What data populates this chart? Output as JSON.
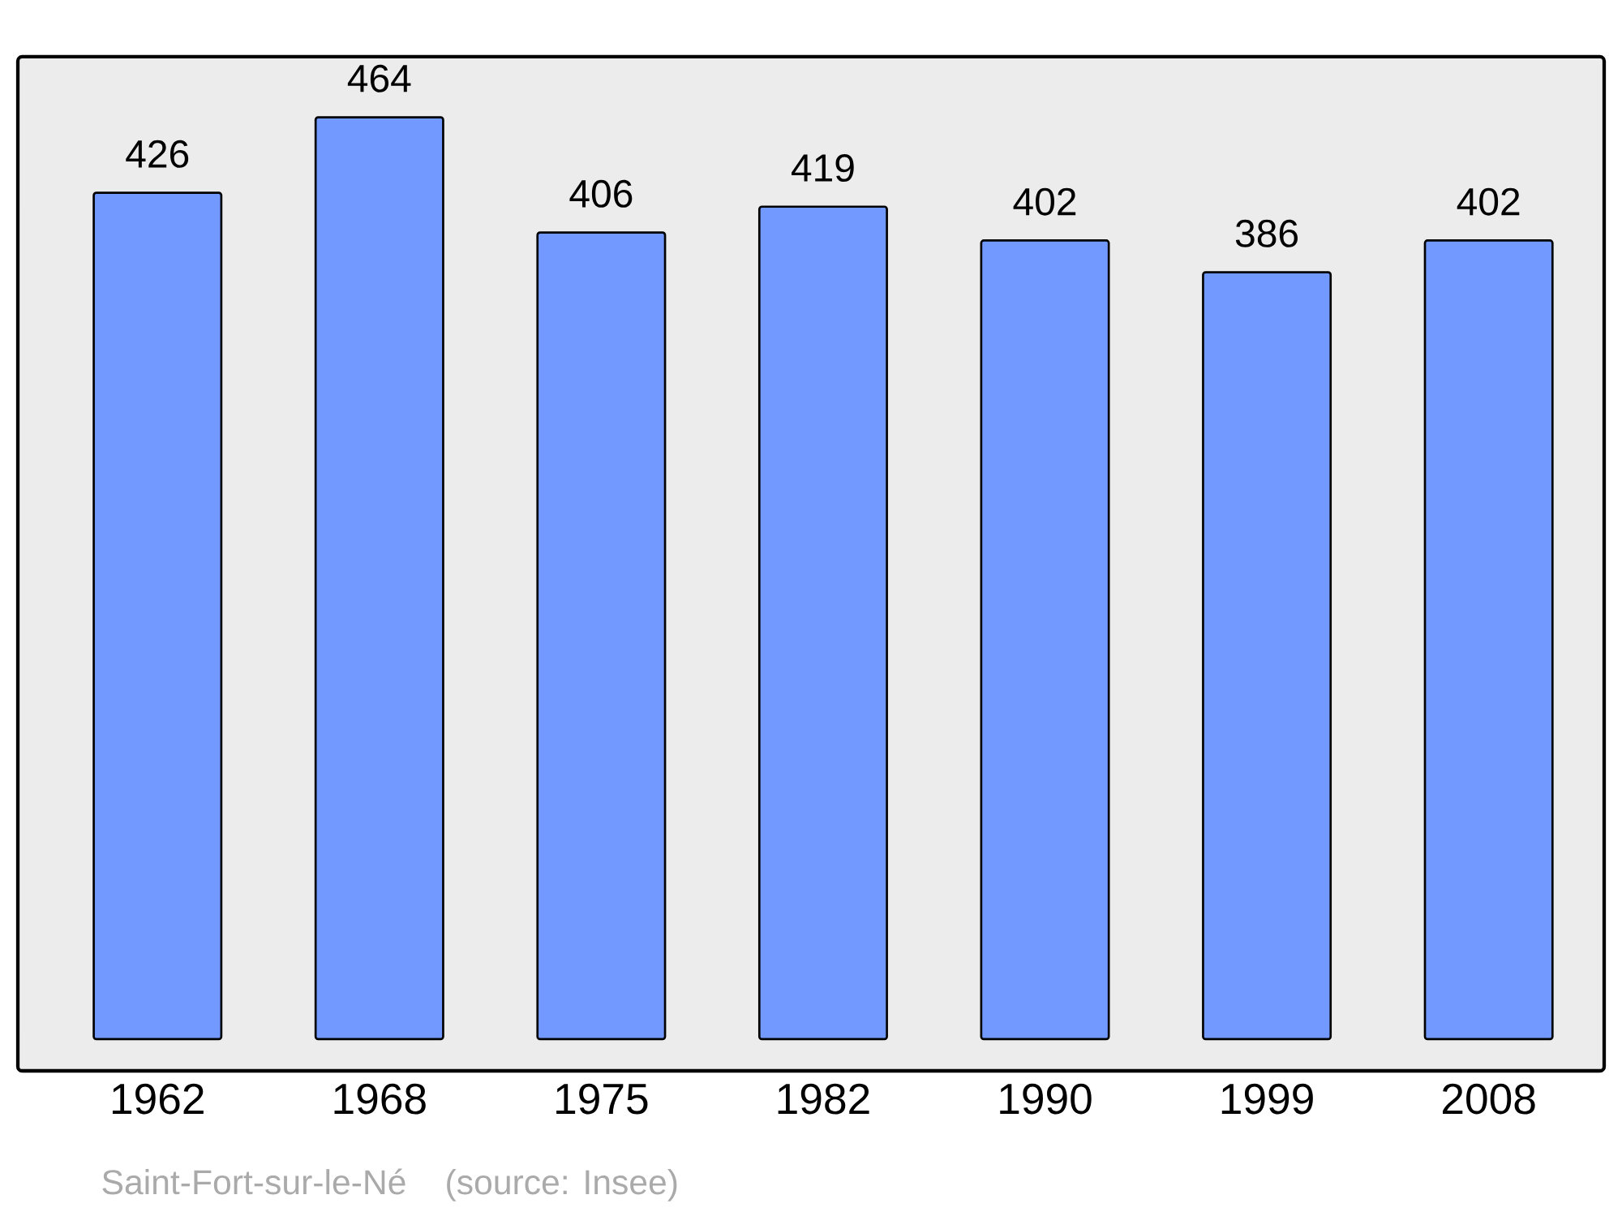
{
  "chart_data": {
    "type": "bar",
    "categories": [
      "1962",
      "1968",
      "1975",
      "1982",
      "1990",
      "1999",
      "2008"
    ],
    "values": [
      426,
      464,
      406,
      419,
      402,
      386,
      402
    ],
    "color": "#7299ff",
    "data_labels": true,
    "annotations": [
      "Saint-Fort-sur-le-Né",
      "(source: Insee)"
    ]
  }
}
